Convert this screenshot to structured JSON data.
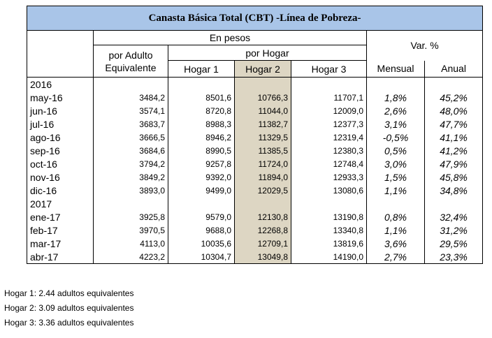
{
  "title": "Canasta Básica Total (CBT) -Línea de Pobreza-",
  "header": {
    "en_pesos": "En pesos",
    "var": "Var. %",
    "adulto_1": "por Adulto",
    "adulto_2": "Equivalente",
    "por_hogar": "por Hogar",
    "columns": [
      "Hogar 1",
      "Hogar 2",
      "Hogar 3",
      "Mensual",
      "Anual"
    ]
  },
  "sections": [
    {
      "year": "2016",
      "rows": [
        [
          "may-16",
          "3484,2",
          "8501,6",
          "10766,3",
          "11707,1",
          "1,8%",
          "45,2%"
        ],
        [
          "jun-16",
          "3574,1",
          "8720,8",
          "11044,0",
          "12009,0",
          "2,6%",
          "48,0%"
        ],
        [
          "jul-16",
          "3683,7",
          "8988,3",
          "11382,7",
          "12377,3",
          "3,1%",
          "47,7%"
        ],
        [
          "ago-16",
          "3666,5",
          "8946,2",
          "11329,5",
          "12319,4",
          "-0,5%",
          "41,1%"
        ],
        [
          "sep-16",
          "3684,6",
          "8990,5",
          "11385,5",
          "12380,3",
          "0,5%",
          "41,2%"
        ],
        [
          "oct-16",
          "3794,2",
          "9257,8",
          "11724,0",
          "12748,4",
          "3,0%",
          "47,9%"
        ],
        [
          "nov-16",
          "3849,2",
          "9392,0",
          "11894,0",
          "12933,3",
          "1,5%",
          "45,8%"
        ],
        [
          "dic-16",
          "3893,0",
          "9499,0",
          "12029,5",
          "13080,6",
          "1,1%",
          "34,8%"
        ]
      ]
    },
    {
      "year": "2017",
      "rows": [
        [
          "ene-17",
          "3925,8",
          "9579,0",
          "12130,8",
          "13190,8",
          "0,8%",
          "32,4%"
        ],
        [
          "feb-17",
          "3970,5",
          "9688,0",
          "12268,8",
          "13340,8",
          "1,1%",
          "31,2%"
        ],
        [
          "mar-17",
          "4113,0",
          "10035,6",
          "12709,1",
          "13819,6",
          "3,6%",
          "29,5%"
        ],
        [
          "abr-17",
          "4223,2",
          "10304,7",
          "13049,8",
          "14190,0",
          "2,7%",
          "23,3%"
        ]
      ]
    }
  ],
  "notes": [
    "Hogar 1: 2.44 adultos equivalentes",
    "Hogar 2: 3.09 adultos equivalentes",
    "Hogar 3: 3.36 adultos equivalentes"
  ]
}
